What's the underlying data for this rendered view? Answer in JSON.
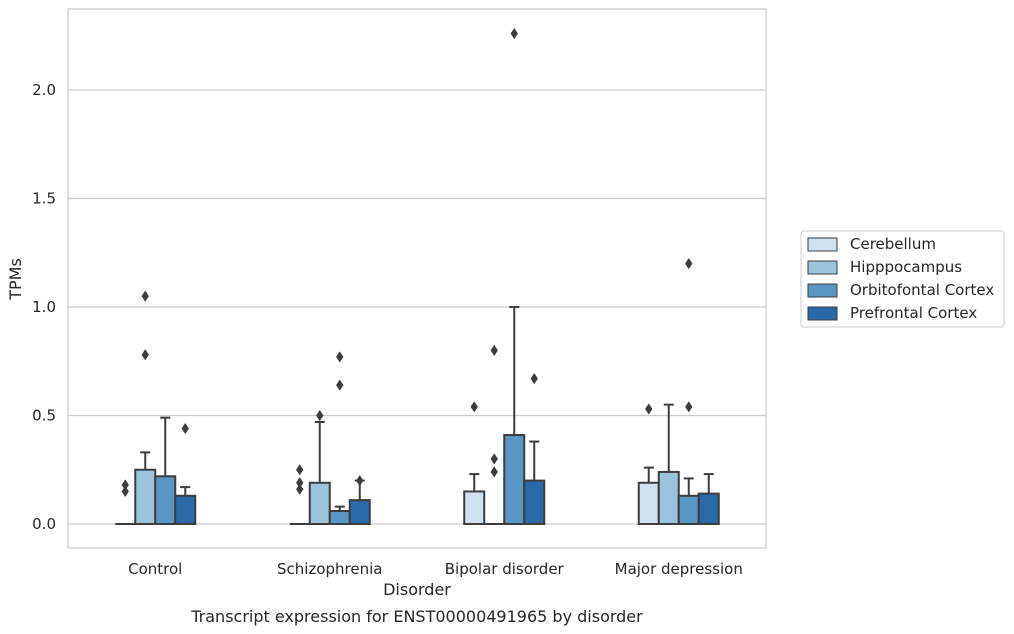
{
  "chart_data": {
    "type": "box",
    "title": "",
    "caption": "Transcript expression for ENST00000491965 by disorder",
    "xlabel": "Disorder",
    "ylabel": "TPMs",
    "ylim": [
      -0.11,
      2.38
    ],
    "yticks": [
      0.0,
      0.5,
      1.0,
      1.5,
      2.0
    ],
    "ytick_labels": [
      "0.0",
      "0.5",
      "1.0",
      "1.5",
      "2.0"
    ],
    "grid": "horizontal",
    "legend_position": "right",
    "categories": [
      "Control",
      "Schizophrenia",
      "Bipolar disorder",
      "Major depression"
    ],
    "series": [
      {
        "name": "Cerebellum",
        "color": "#d0e1f2",
        "boxes": [
          {
            "q1": 0.0,
            "median": 0.0,
            "q3": 0.0,
            "whislo": 0.0,
            "whishi": 0.0,
            "fliers": [
              0.15,
              0.18
            ]
          },
          {
            "q1": 0.0,
            "median": 0.0,
            "q3": 0.0,
            "whislo": 0.0,
            "whishi": 0.0,
            "fliers": [
              0.16,
              0.19,
              0.25
            ]
          },
          {
            "q1": 0.0,
            "median": 0.0,
            "q3": 0.15,
            "whislo": 0.0,
            "whishi": 0.23,
            "fliers": [
              0.54
            ]
          },
          {
            "q1": 0.0,
            "median": 0.0,
            "q3": 0.19,
            "whislo": 0.0,
            "whishi": 0.26,
            "fliers": [
              0.53
            ]
          }
        ]
      },
      {
        "name": "Hipppocampus",
        "color": "#9cc3dc",
        "boxes": [
          {
            "q1": 0.0,
            "median": 0.0,
            "q3": 0.25,
            "whislo": 0.0,
            "whishi": 0.33,
            "fliers": [
              0.78,
              1.05
            ]
          },
          {
            "q1": 0.0,
            "median": 0.0,
            "q3": 0.19,
            "whislo": 0.0,
            "whishi": 0.47,
            "fliers": [
              0.5
            ]
          },
          {
            "q1": 0.0,
            "median": 0.0,
            "q3": 0.0,
            "whislo": 0.0,
            "whishi": 0.0,
            "fliers": [
              0.24,
              0.3,
              0.8
            ]
          },
          {
            "q1": 0.0,
            "median": 0.0,
            "q3": 0.24,
            "whislo": 0.0,
            "whishi": 0.55,
            "fliers": []
          }
        ]
      },
      {
        "name": "Orbitofontal Cortex",
        "color": "#5996c4",
        "boxes": [
          {
            "q1": 0.0,
            "median": 0.0,
            "q3": 0.22,
            "whislo": 0.0,
            "whishi": 0.49,
            "fliers": []
          },
          {
            "q1": 0.0,
            "median": 0.0,
            "q3": 0.06,
            "whislo": 0.0,
            "whishi": 0.08,
            "fliers": [
              0.64,
              0.77
            ]
          },
          {
            "q1": 0.0,
            "median": 0.0,
            "q3": 0.41,
            "whislo": 0.0,
            "whishi": 1.0,
            "fliers": [
              2.26
            ]
          },
          {
            "q1": 0.0,
            "median": 0.0,
            "q3": 0.13,
            "whislo": 0.0,
            "whishi": 0.21,
            "fliers": [
              0.54,
              1.2
            ]
          }
        ]
      },
      {
        "name": "Prefrontal Cortex",
        "color": "#2a69a8",
        "boxes": [
          {
            "q1": 0.0,
            "median": 0.0,
            "q3": 0.13,
            "whislo": 0.0,
            "whishi": 0.17,
            "fliers": [
              0.44
            ]
          },
          {
            "q1": 0.0,
            "median": 0.0,
            "q3": 0.11,
            "whislo": 0.0,
            "whishi": 0.2,
            "fliers": [
              0.2
            ]
          },
          {
            "q1": 0.0,
            "median": 0.0,
            "q3": 0.2,
            "whislo": 0.0,
            "whishi": 0.38,
            "fliers": [
              0.67
            ]
          },
          {
            "q1": 0.0,
            "median": 0.0,
            "q3": 0.14,
            "whislo": 0.0,
            "whishi": 0.23,
            "fliers": []
          }
        ]
      }
    ]
  }
}
